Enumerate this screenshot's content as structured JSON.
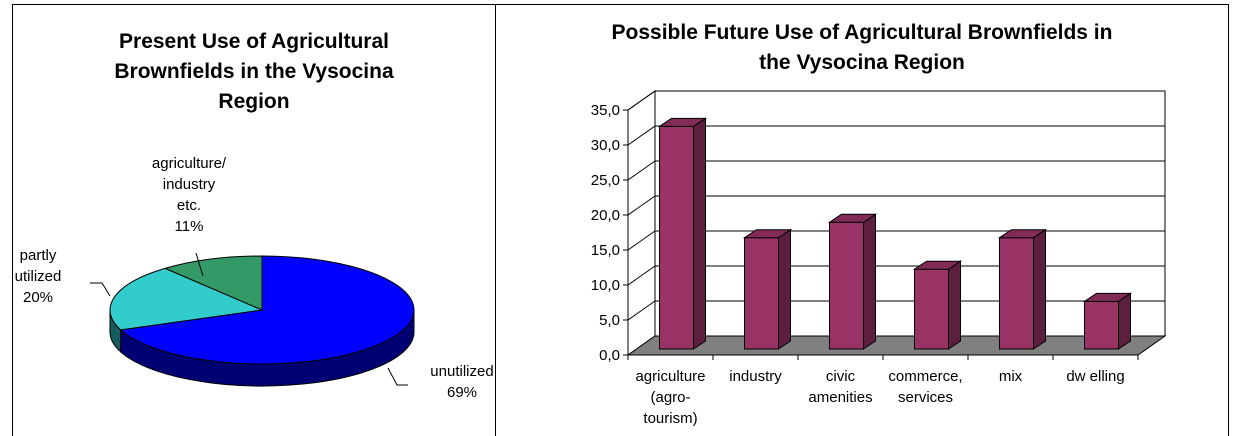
{
  "chart_data": [
    {
      "type": "pie",
      "title": [
        "Present Use of Agricultural",
        "Brownfields in the Vysocina",
        "Region"
      ],
      "slices": [
        {
          "label": [
            "unutilized",
            "69%"
          ],
          "value": 69,
          "color": "#0000ff"
        },
        {
          "label": [
            "partly",
            "utilized",
            "20%"
          ],
          "value": 20,
          "color": "#33cccc"
        },
        {
          "label": [
            "agriculture/",
            "industry",
            "etc.",
            "11%"
          ],
          "value": 11,
          "color": "#339966"
        }
      ]
    },
    {
      "type": "bar",
      "title": [
        "Possible Future Use of Agricultural Brownfields in",
        "the Vysocina Region"
      ],
      "categories": [
        [
          "agriculture",
          "(agro-",
          "tourism)"
        ],
        [
          "industry"
        ],
        [
          "civic",
          "amenities"
        ],
        [
          "commerce,",
          "services"
        ],
        [
          "mix"
        ],
        [
          "dw elling"
        ]
      ],
      "values": [
        31.8,
        15.9,
        18.1,
        11.4,
        15.9,
        6.8
      ],
      "ylim": [
        0,
        35
      ],
      "yticks": [
        "0,0",
        "5,0",
        "10,0",
        "15,0",
        "20,0",
        "25,0",
        "30,0",
        "35,0"
      ],
      "bar_color": "#993366",
      "floor_color": "#808080",
      "grid": true
    }
  ]
}
